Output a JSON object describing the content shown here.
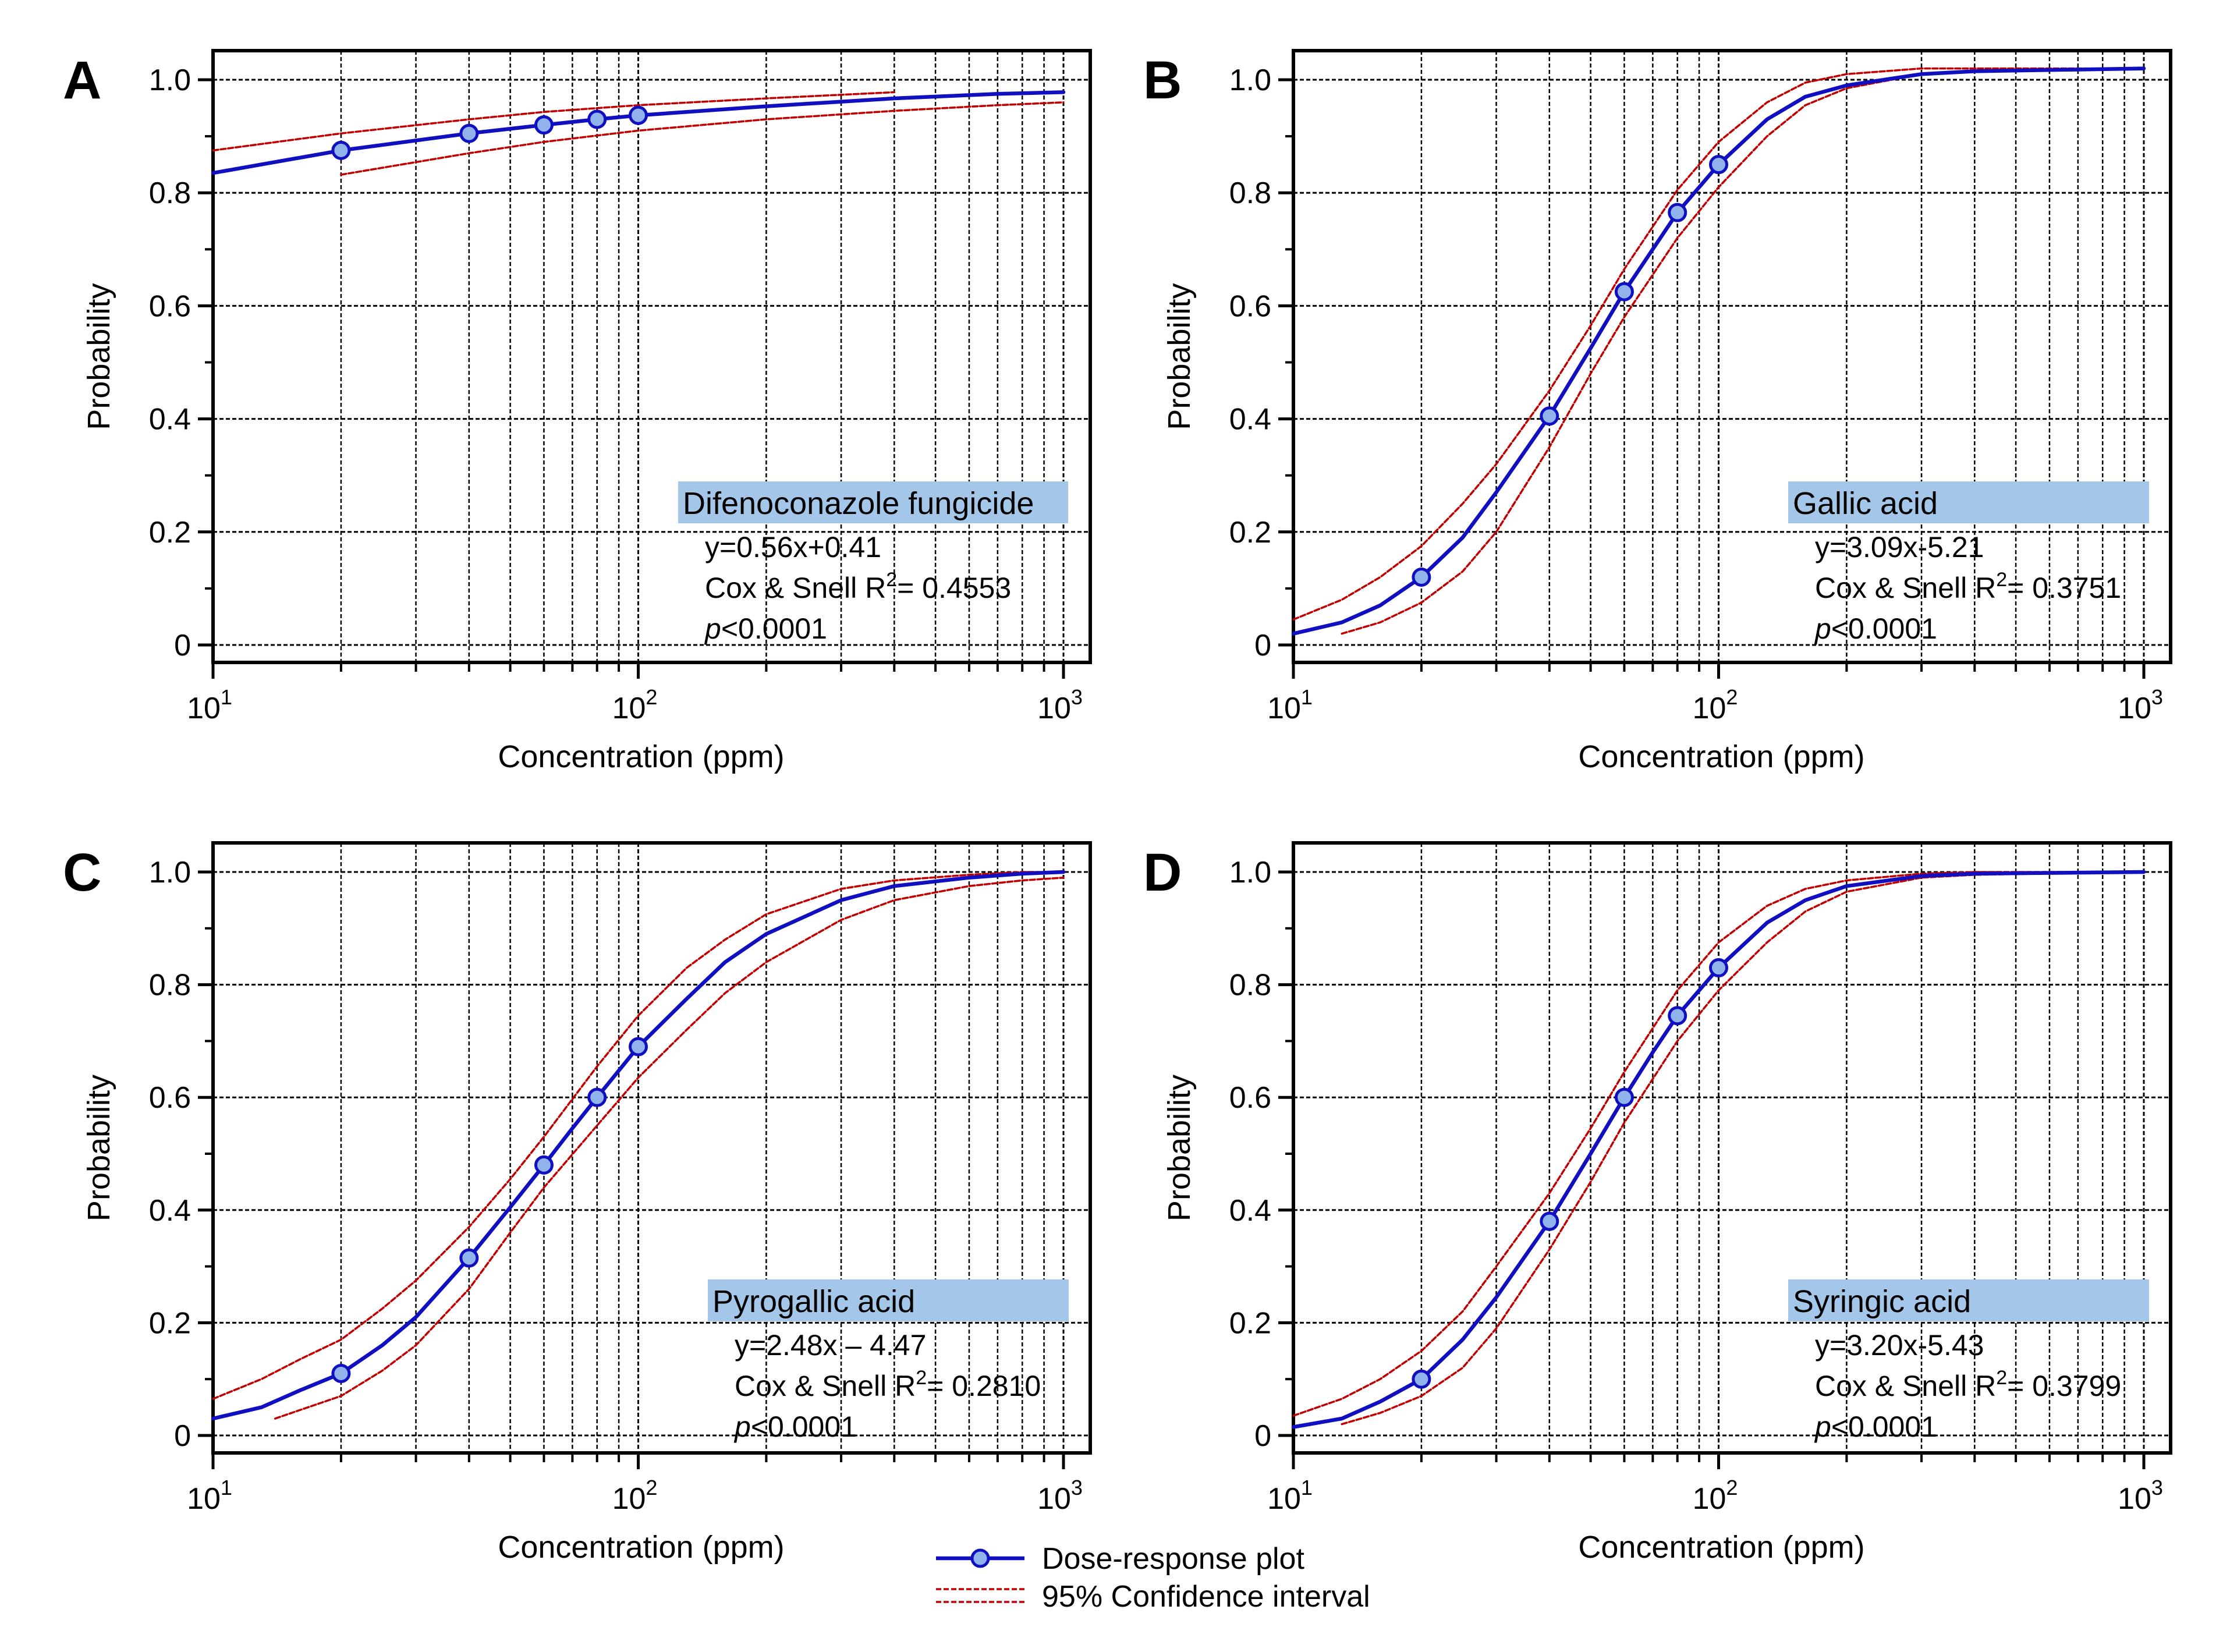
{
  "colors": {
    "curve": "#1010c0",
    "ci": "#c00000",
    "marker_fill": "#8fb3ea",
    "label_box": "#a3c6e9",
    "grid": "#000000"
  },
  "legend": {
    "main_label": "Dose-response plot",
    "ci_label": "95% Confidence interval"
  },
  "chart_data": [
    {
      "type": "line",
      "panel_letter": "A",
      "xlabel": "Concentration (ppm)",
      "ylabel": "Probability",
      "xscale": "log",
      "xlim": [
        10,
        1000
      ],
      "ylim": [
        0,
        1.0
      ],
      "x_tick_labels": [
        "10",
        "1",
        "10",
        "2",
        "10",
        "3"
      ],
      "y_tick_labels": [
        "0",
        "0.2",
        "0.4",
        "0.6",
        "0.8",
        "1.0"
      ],
      "grid": true,
      "label_box": "Difenoconazole fungicide",
      "annotation": {
        "equation": "y=0.56x+0.41",
        "r2_prefix": "Cox & Snell R",
        "r2_sup": "2",
        "r2_value": "= 0.4553",
        "p_symbol": "p",
        "p_value": "<0.0001"
      },
      "points": {
        "x": [
          20,
          40,
          60,
          80,
          100
        ],
        "y": [
          0.875,
          0.905,
          0.92,
          0.93,
          0.937
        ]
      },
      "fit": {
        "x": [
          10,
          20,
          40,
          60,
          80,
          100,
          200,
          400,
          700,
          1000
        ],
        "y": [
          0.835,
          0.875,
          0.905,
          0.92,
          0.93,
          0.937,
          0.953,
          0.967,
          0.975,
          0.978
        ]
      },
      "ci_upper": {
        "x": [
          10,
          20,
          40,
          60,
          100,
          200,
          400
        ],
        "y": [
          0.875,
          0.905,
          0.93,
          0.943,
          0.955,
          0.967,
          0.978
        ]
      },
      "ci_lower": {
        "x": [
          20,
          40,
          60,
          100,
          200,
          400,
          700,
          1000
        ],
        "y": [
          0.832,
          0.87,
          0.89,
          0.91,
          0.93,
          0.945,
          0.955,
          0.96
        ]
      }
    },
    {
      "type": "line",
      "panel_letter": "B",
      "xlabel": "Concentration (ppm)",
      "ylabel": "Probability",
      "xscale": "log",
      "xlim": [
        10,
        1000
      ],
      "ylim": [
        0,
        1.0
      ],
      "x_tick_labels": [
        "10",
        "1",
        "10",
        "2",
        "10",
        "3"
      ],
      "y_tick_labels": [
        "0",
        "0.2",
        "0.4",
        "0.6",
        "0.8",
        "1.0"
      ],
      "grid": true,
      "label_box": "Gallic acid",
      "annotation": {
        "equation": "y=3.09x-5.21",
        "r2_prefix": "Cox & Snell R",
        "r2_sup": "2",
        "r2_value": "= 0.3751",
        "p_symbol": "p",
        "p_value": "<0.0001"
      },
      "points": {
        "x": [
          20,
          40,
          60,
          80,
          100
        ],
        "y": [
          0.12,
          0.405,
          0.625,
          0.765,
          0.85
        ]
      },
      "fit": {
        "x": [
          10,
          13,
          16,
          20,
          25,
          30,
          40,
          50,
          60,
          70,
          80,
          100,
          130,
          160,
          200,
          300,
          400,
          1000
        ],
        "y": [
          0.02,
          0.04,
          0.07,
          0.12,
          0.19,
          0.27,
          0.405,
          0.525,
          0.625,
          0.7,
          0.765,
          0.85,
          0.93,
          0.97,
          0.99,
          1.01,
          1.015,
          1.02
        ]
      },
      "ci_upper": {
        "x": [
          10,
          13,
          16,
          20,
          25,
          30,
          40,
          50,
          60,
          80,
          100,
          130,
          160,
          200,
          300,
          400,
          1000
        ],
        "y": [
          0.045,
          0.08,
          0.12,
          0.175,
          0.25,
          0.32,
          0.45,
          0.565,
          0.665,
          0.805,
          0.89,
          0.96,
          0.995,
          1.01,
          1.02,
          1.02,
          1.02
        ]
      },
      "ci_lower": {
        "x": [
          13,
          16,
          20,
          25,
          30,
          40,
          50,
          60,
          80,
          100,
          130,
          160,
          200,
          300,
          400,
          1000
        ],
        "y": [
          0.02,
          0.04,
          0.075,
          0.13,
          0.2,
          0.35,
          0.48,
          0.58,
          0.72,
          0.81,
          0.9,
          0.955,
          0.985,
          1.01,
          1.015,
          1.02
        ]
      }
    },
    {
      "type": "line",
      "panel_letter": "C",
      "xlabel": "Concentration (ppm)",
      "ylabel": "Probability",
      "xscale": "log",
      "xlim": [
        10,
        1000
      ],
      "ylim": [
        0,
        1.0
      ],
      "x_tick_labels": [
        "10",
        "1",
        "10",
        "2",
        "10",
        "3"
      ],
      "y_tick_labels": [
        "0",
        "0.2",
        "0.4",
        "0.6",
        "0.8",
        "1.0"
      ],
      "grid": true,
      "label_box": "Pyrogallic acid",
      "annotation": {
        "equation": "y=2.48x – 4.47",
        "r2_prefix": "Cox & Snell R",
        "r2_sup": "2",
        "r2_value": "= 0.2810",
        "p_symbol": "p",
        "p_value": "<0.0001"
      },
      "points": {
        "x": [
          20,
          40,
          60,
          80,
          100
        ],
        "y": [
          0.11,
          0.315,
          0.48,
          0.6,
          0.69
        ]
      },
      "fit": {
        "x": [
          10,
          13,
          16,
          20,
          25,
          30,
          40,
          50,
          60,
          70,
          80,
          100,
          130,
          160,
          200,
          300,
          400,
          600,
          800,
          1000
        ],
        "y": [
          0.03,
          0.05,
          0.08,
          0.11,
          0.16,
          0.21,
          0.315,
          0.405,
          0.48,
          0.545,
          0.6,
          0.69,
          0.775,
          0.84,
          0.89,
          0.95,
          0.975,
          0.99,
          0.997,
          1.0
        ]
      },
      "ci_upper": {
        "x": [
          10,
          13,
          16,
          20,
          25,
          30,
          40,
          50,
          60,
          80,
          100,
          130,
          160,
          200,
          300,
          400,
          600,
          800,
          1000
        ],
        "y": [
          0.065,
          0.1,
          0.135,
          0.17,
          0.225,
          0.275,
          0.37,
          0.455,
          0.53,
          0.655,
          0.745,
          0.83,
          0.88,
          0.925,
          0.97,
          0.985,
          0.995,
          1.0,
          1.0
        ]
      },
      "ci_lower": {
        "x": [
          14,
          16,
          20,
          25,
          30,
          40,
          50,
          60,
          80,
          100,
          130,
          160,
          200,
          300,
          400,
          600,
          800,
          1000
        ],
        "y": [
          0.03,
          0.045,
          0.07,
          0.115,
          0.16,
          0.26,
          0.36,
          0.44,
          0.55,
          0.635,
          0.72,
          0.785,
          0.84,
          0.915,
          0.95,
          0.975,
          0.985,
          0.99
        ]
      }
    },
    {
      "type": "line",
      "panel_letter": "D",
      "xlabel": "Concentration (ppm)",
      "ylabel": "Probability",
      "xscale": "log",
      "xlim": [
        10,
        1000
      ],
      "ylim": [
        0,
        1.0
      ],
      "x_tick_labels": [
        "10",
        "1",
        "10",
        "2",
        "10",
        "3"
      ],
      "y_tick_labels": [
        "0",
        "0.2",
        "0.4",
        "0.6",
        "0.8",
        "1.0"
      ],
      "grid": true,
      "label_box": "Syringic acid",
      "annotation": {
        "equation": "y=3.20x-5.43",
        "r2_prefix": "Cox & Snell R",
        "r2_sup": "2",
        "r2_value": "= 0.3799",
        "p_symbol": "p",
        "p_value": "<0.0001"
      },
      "points": {
        "x": [
          20,
          40,
          60,
          80,
          100
        ],
        "y": [
          0.1,
          0.38,
          0.6,
          0.745,
          0.83
        ]
      },
      "fit": {
        "x": [
          10,
          13,
          16,
          20,
          25,
          30,
          40,
          50,
          60,
          70,
          80,
          100,
          130,
          160,
          200,
          300,
          400,
          1000
        ],
        "y": [
          0.015,
          0.03,
          0.06,
          0.1,
          0.17,
          0.245,
          0.38,
          0.5,
          0.6,
          0.68,
          0.745,
          0.83,
          0.91,
          0.95,
          0.975,
          0.993,
          0.997,
          1.0
        ]
      },
      "ci_upper": {
        "x": [
          10,
          13,
          16,
          20,
          25,
          30,
          40,
          50,
          60,
          80,
          100,
          130,
          160,
          200,
          300,
          400,
          1000
        ],
        "y": [
          0.035,
          0.065,
          0.1,
          0.15,
          0.22,
          0.3,
          0.43,
          0.545,
          0.645,
          0.79,
          0.875,
          0.94,
          0.97,
          0.985,
          0.997,
          1.0,
          1.0
        ]
      },
      "ci_lower": {
        "x": [
          13,
          16,
          20,
          25,
          30,
          40,
          50,
          60,
          80,
          100,
          130,
          160,
          200,
          300,
          400,
          1000
        ],
        "y": [
          0.02,
          0.04,
          0.07,
          0.12,
          0.19,
          0.33,
          0.45,
          0.555,
          0.7,
          0.79,
          0.875,
          0.93,
          0.965,
          0.99,
          0.995,
          1.0
        ]
      }
    }
  ]
}
